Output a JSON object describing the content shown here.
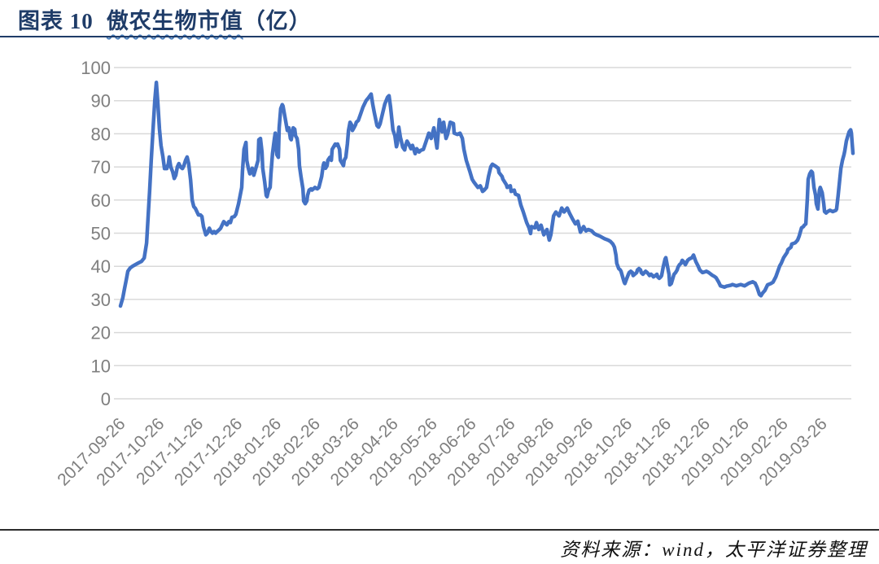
{
  "figure": {
    "label": "图表 10",
    "title_main": "傲农生物市值",
    "title_suffix": "（亿）",
    "source": "资料来源：wind，太平洋证券整理"
  },
  "colors": {
    "line": "#4472C4",
    "gridline": "#D9D9D9",
    "tick_label": "#7F7F7F",
    "title": "#1F3C68",
    "title_rule": "#1F3C68",
    "bottom_rule": "#2B2B2B",
    "wavy_underline": "#4A7EBB"
  },
  "chart_data": {
    "type": "line",
    "title": "傲农生物市值（亿）",
    "series_name": "傲农生物市值",
    "unit": "亿",
    "ylim": [
      0,
      100
    ],
    "yticks": [
      0,
      10,
      20,
      30,
      40,
      50,
      60,
      70,
      80,
      90,
      100
    ],
    "grid": "horizontal",
    "legend": "none",
    "x_unit": "months since 2017-09-26",
    "xtick_labels": [
      "2017-09-26",
      "2017-10-26",
      "2017-11-26",
      "2017-12-26",
      "2018-01-26",
      "2018-02-26",
      "2018-03-26",
      "2018-04-26",
      "2018-05-26",
      "2018-06-26",
      "2018-07-26",
      "2018-08-26",
      "2018-09-26",
      "2018-10-26",
      "2018-11-26",
      "2018-12-26",
      "2019-01-26",
      "2019-02-26",
      "2019-03-26"
    ],
    "points": [
      [
        0,
        28
      ],
      [
        0.06,
        30.5
      ],
      [
        0.1,
        33
      ],
      [
        0.15,
        36
      ],
      [
        0.19,
        38.5
      ],
      [
        0.25,
        39.5
      ],
      [
        0.31,
        40
      ],
      [
        0.38,
        40.5
      ],
      [
        0.46,
        41
      ],
      [
        0.54,
        41.5
      ],
      [
        0.61,
        42.5
      ],
      [
        0.67,
        47
      ],
      [
        0.71,
        55
      ],
      [
        0.75,
        63
      ],
      [
        0.79,
        72
      ],
      [
        0.84,
        82
      ],
      [
        0.88,
        90
      ],
      [
        0.92,
        95.5
      ],
      [
        0.96,
        89
      ],
      [
        1,
        81.5
      ],
      [
        1.04,
        76.5
      ],
      [
        1.09,
        73
      ],
      [
        1.13,
        69.5
      ],
      [
        1.19,
        69.5
      ],
      [
        1.23,
        71
      ],
      [
        1.25,
        73
      ],
      [
        1.29,
        70
      ],
      [
        1.34,
        68.5
      ],
      [
        1.38,
        66.5
      ],
      [
        1.42,
        67.5
      ],
      [
        1.46,
        70
      ],
      [
        1.5,
        71
      ],
      [
        1.54,
        70
      ],
      [
        1.59,
        69.5
      ],
      [
        1.63,
        70.5
      ],
      [
        1.67,
        72
      ],
      [
        1.71,
        73
      ],
      [
        1.75,
        71
      ],
      [
        1.8,
        66
      ],
      [
        1.84,
        60
      ],
      [
        1.88,
        58
      ],
      [
        1.92,
        57.5
      ],
      [
        1.96,
        56.5
      ],
      [
        2,
        55.5
      ],
      [
        2.05,
        55.5
      ],
      [
        2.09,
        55
      ],
      [
        2.13,
        52
      ],
      [
        2.19,
        49.5
      ],
      [
        2.23,
        50
      ],
      [
        2.28,
        51.5
      ],
      [
        2.32,
        50.5
      ],
      [
        2.36,
        50
      ],
      [
        2.4,
        50.5
      ],
      [
        2.44,
        50
      ],
      [
        2.48,
        50.5
      ],
      [
        2.53,
        51
      ],
      [
        2.57,
        51.5
      ],
      [
        2.61,
        52.5
      ],
      [
        2.65,
        53.5
      ],
      [
        2.69,
        53
      ],
      [
        2.73,
        52.5
      ],
      [
        2.78,
        53.5
      ],
      [
        2.82,
        53.2
      ],
      [
        2.86,
        54.8
      ],
      [
        2.92,
        55
      ],
      [
        2.96,
        55.7
      ],
      [
        3.03,
        58.9
      ],
      [
        3.11,
        63.8
      ],
      [
        3.13,
        68.7
      ],
      [
        3.17,
        75.3
      ],
      [
        3.22,
        77.4
      ],
      [
        3.24,
        72
      ],
      [
        3.28,
        69.6
      ],
      [
        3.32,
        67.9
      ],
      [
        3.34,
        68.7
      ],
      [
        3.38,
        69.6
      ],
      [
        3.42,
        67.5
      ],
      [
        3.45,
        68.7
      ],
      [
        3.53,
        72
      ],
      [
        3.55,
        78.2
      ],
      [
        3.59,
        78.6
      ],
      [
        3.63,
        74.5
      ],
      [
        3.65,
        69.6
      ],
      [
        3.7,
        65.5
      ],
      [
        3.74,
        61.4
      ],
      [
        3.76,
        61
      ],
      [
        3.8,
        63
      ],
      [
        3.84,
        63.8
      ],
      [
        3.86,
        67.9
      ],
      [
        3.9,
        74
      ],
      [
        3.95,
        78.6
      ],
      [
        3.97,
        80.2
      ],
      [
        4.01,
        73.7
      ],
      [
        4.05,
        72.9
      ],
      [
        4.07,
        81.8
      ],
      [
        4.11,
        87.6
      ],
      [
        4.15,
        88.8
      ],
      [
        4.17,
        88.4
      ],
      [
        4.22,
        85.1
      ],
      [
        4.26,
        82.3
      ],
      [
        4.28,
        81
      ],
      [
        4.32,
        81.8
      ],
      [
        4.36,
        78.6
      ],
      [
        4.38,
        78.2
      ],
      [
        4.43,
        81.8
      ],
      [
        4.47,
        81.4
      ],
      [
        4.49,
        79.4
      ],
      [
        4.53,
        78.6
      ],
      [
        4.57,
        75.3
      ],
      [
        4.59,
        70.4
      ],
      [
        4.63,
        67.1
      ],
      [
        4.68,
        63.4
      ],
      [
        4.7,
        59.7
      ],
      [
        4.74,
        58.9
      ],
      [
        4.78,
        59.7
      ],
      [
        4.8,
        61.4
      ],
      [
        4.84,
        63
      ],
      [
        4.89,
        63.4
      ],
      [
        4.91,
        63
      ],
      [
        4.95,
        63.4
      ],
      [
        4.99,
        63.8
      ],
      [
        5.05,
        63.4
      ],
      [
        5.09,
        63.8
      ],
      [
        5.16,
        67.1
      ],
      [
        5.2,
        70.4
      ],
      [
        5.22,
        71.2
      ],
      [
        5.26,
        69.6
      ],
      [
        5.3,
        70.4
      ],
      [
        5.32,
        72
      ],
      [
        5.37,
        72.9
      ],
      [
        5.41,
        72
      ],
      [
        5.43,
        75.3
      ],
      [
        5.47,
        76.1
      ],
      [
        5.51,
        76.9
      ],
      [
        5.53,
        76.5
      ],
      [
        5.57,
        76.9
      ],
      [
        5.62,
        75.3
      ],
      [
        5.64,
        72
      ],
      [
        5.68,
        71.2
      ],
      [
        5.72,
        70.4
      ],
      [
        5.74,
        72
      ],
      [
        5.78,
        72.9
      ],
      [
        5.82,
        76.9
      ],
      [
        5.85,
        81
      ],
      [
        5.89,
        83.5
      ],
      [
        5.93,
        82.7
      ],
      [
        5.95,
        81
      ],
      [
        5.99,
        81.8
      ],
      [
        6.03,
        82.7
      ],
      [
        6.05,
        83.5
      ],
      [
        6.1,
        84
      ],
      [
        6.16,
        86
      ],
      [
        6.22,
        88
      ],
      [
        6.3,
        90
      ],
      [
        6.37,
        91
      ],
      [
        6.43,
        92
      ],
      [
        6.47,
        89
      ],
      [
        6.51,
        86.5
      ],
      [
        6.58,
        82.5
      ],
      [
        6.62,
        82
      ],
      [
        6.66,
        83
      ],
      [
        6.72,
        86
      ],
      [
        6.78,
        89
      ],
      [
        6.85,
        91
      ],
      [
        6.89,
        91.5
      ],
      [
        6.93,
        88
      ],
      [
        6.99,
        81.2
      ],
      [
        7.04,
        79.4
      ],
      [
        7.08,
        76.1
      ],
      [
        7.1,
        77
      ],
      [
        7.14,
        82
      ],
      [
        7.18,
        79
      ],
      [
        7.2,
        78
      ],
      [
        7.24,
        76
      ],
      [
        7.29,
        75.1
      ],
      [
        7.31,
        76.3
      ],
      [
        7.35,
        77.8
      ],
      [
        7.39,
        77
      ],
      [
        7.45,
        75.5
      ],
      [
        7.49,
        76.5
      ],
      [
        7.56,
        74
      ],
      [
        7.6,
        75.5
      ],
      [
        7.66,
        74.5
      ],
      [
        7.7,
        75
      ],
      [
        7.77,
        75.3
      ],
      [
        7.83,
        77.4
      ],
      [
        7.91,
        80.2
      ],
      [
        7.97,
        78.6
      ],
      [
        8.04,
        81.8
      ],
      [
        8.12,
        75.7
      ],
      [
        8.18,
        84.3
      ],
      [
        8.25,
        80.6
      ],
      [
        8.29,
        83.5
      ],
      [
        8.35,
        78.6
      ],
      [
        8.39,
        79.8
      ],
      [
        8.46,
        83.5
      ],
      [
        8.54,
        83.1
      ],
      [
        8.56,
        80.2
      ],
      [
        8.64,
        79.8
      ],
      [
        8.71,
        80.2
      ],
      [
        8.77,
        78.6
      ],
      [
        8.81,
        75.3
      ],
      [
        8.87,
        72
      ],
      [
        8.96,
        68.7
      ],
      [
        9.02,
        66.3
      ],
      [
        9.06,
        65.5
      ],
      [
        9.12,
        64.6
      ],
      [
        9.17,
        63.8
      ],
      [
        9.23,
        64.3
      ],
      [
        9.29,
        62.6
      ],
      [
        9.33,
        63
      ],
      [
        9.39,
        63.8
      ],
      [
        9.44,
        67.1
      ],
      [
        9.5,
        70
      ],
      [
        9.54,
        70.8
      ],
      [
        9.6,
        70.4
      ],
      [
        9.69,
        69.6
      ],
      [
        9.71,
        68.3
      ],
      [
        9.79,
        67.1
      ],
      [
        9.81,
        66.3
      ],
      [
        9.9,
        64.6
      ],
      [
        9.92,
        63.8
      ],
      [
        10,
        64.3
      ],
      [
        10.02,
        62.6
      ],
      [
        10.1,
        63
      ],
      [
        10.13,
        61.8
      ],
      [
        10.21,
        61.4
      ],
      [
        10.27,
        58.5
      ],
      [
        10.33,
        56.5
      ],
      [
        10.42,
        53.2
      ],
      [
        10.48,
        51.6
      ],
      [
        10.52,
        49.9
      ],
      [
        10.54,
        52
      ],
      [
        10.63,
        51.6
      ],
      [
        10.67,
        53.2
      ],
      [
        10.73,
        51.1
      ],
      [
        10.79,
        52.4
      ],
      [
        10.86,
        49.5
      ],
      [
        10.94,
        51.1
      ],
      [
        11,
        47.9
      ],
      [
        11.04,
        49.5
      ],
      [
        11.11,
        55.2
      ],
      [
        11.17,
        56.4
      ],
      [
        11.25,
        55.2
      ],
      [
        11.32,
        57.6
      ],
      [
        11.38,
        56.4
      ],
      [
        11.46,
        57.6
      ],
      [
        11.52,
        56
      ],
      [
        11.59,
        54.4
      ],
      [
        11.67,
        52.8
      ],
      [
        11.73,
        53.6
      ],
      [
        11.8,
        50.3
      ],
      [
        11.88,
        52
      ],
      [
        11.94,
        50.7
      ],
      [
        12,
        51.1
      ],
      [
        12.09,
        50.7
      ],
      [
        12.15,
        49.9
      ],
      [
        12.21,
        49.5
      ],
      [
        12.3,
        49.1
      ],
      [
        12.36,
        48.7
      ],
      [
        12.42,
        48.3
      ],
      [
        12.51,
        47.9
      ],
      [
        12.57,
        47.5
      ],
      [
        12.63,
        46.7
      ],
      [
        12.67,
        45.8
      ],
      [
        12.71,
        43.4
      ],
      [
        12.73,
        40.9
      ],
      [
        12.78,
        39.3
      ],
      [
        12.82,
        38.9
      ],
      [
        12.84,
        38.5
      ],
      [
        12.88,
        36.8
      ],
      [
        12.92,
        35.2
      ],
      [
        12.94,
        34.8
      ],
      [
        12.99,
        36.4
      ],
      [
        13.03,
        37.6
      ],
      [
        13.05,
        38.1
      ],
      [
        13.09,
        38.5
      ],
      [
        13.13,
        38.1
      ],
      [
        13.15,
        37.2
      ],
      [
        13.19,
        37.6
      ],
      [
        13.24,
        38.1
      ],
      [
        13.26,
        38.9
      ],
      [
        13.3,
        39.3
      ],
      [
        13.34,
        38.9
      ],
      [
        13.36,
        38.1
      ],
      [
        13.4,
        37.6
      ],
      [
        13.44,
        38.1
      ],
      [
        13.47,
        38.5
      ],
      [
        13.51,
        38.1
      ],
      [
        13.55,
        37.6
      ],
      [
        13.57,
        37.2
      ],
      [
        13.61,
        37.6
      ],
      [
        13.65,
        37.2
      ],
      [
        13.67,
        36.8
      ],
      [
        13.72,
        37.2
      ],
      [
        13.76,
        37.6
      ],
      [
        13.78,
        36.8
      ],
      [
        13.82,
        36.4
      ],
      [
        13.86,
        36.8
      ],
      [
        13.88,
        37.2
      ],
      [
        13.92,
        39.7
      ],
      [
        13.97,
        42.2
      ],
      [
        13.99,
        42.6
      ],
      [
        14.03,
        40.1
      ],
      [
        14.07,
        37.6
      ],
      [
        14.09,
        34.4
      ],
      [
        14.13,
        34.8
      ],
      [
        14.18,
        36.8
      ],
      [
        14.2,
        37.6
      ],
      [
        14.24,
        38.1
      ],
      [
        14.28,
        38.9
      ],
      [
        14.3,
        39.7
      ],
      [
        14.34,
        40.5
      ],
      [
        14.38,
        40.9
      ],
      [
        14.41,
        41.8
      ],
      [
        14.45,
        41.3
      ],
      [
        14.49,
        40.5
      ],
      [
        14.51,
        40.9
      ],
      [
        14.55,
        41.8
      ],
      [
        14.59,
        42.2
      ],
      [
        14.66,
        42.6
      ],
      [
        14.7,
        43.4
      ],
      [
        14.76,
        41.4
      ],
      [
        14.82,
        40
      ],
      [
        14.86,
        38.9
      ],
      [
        14.93,
        38.1
      ],
      [
        14.99,
        38.3
      ],
      [
        15.03,
        38.5
      ],
      [
        15.09,
        38.1
      ],
      [
        15.18,
        37.3
      ],
      [
        15.24,
        36.9
      ],
      [
        15.28,
        36.5
      ],
      [
        15.34,
        35.3
      ],
      [
        15.39,
        34.1
      ],
      [
        15.49,
        33.7
      ],
      [
        15.55,
        34
      ],
      [
        15.59,
        34.1
      ],
      [
        15.66,
        34.3
      ],
      [
        15.7,
        34.5
      ],
      [
        15.8,
        34.1
      ],
      [
        15.91,
        34.5
      ],
      [
        16.01,
        34.1
      ],
      [
        16.12,
        34.9
      ],
      [
        16.22,
        35.3
      ],
      [
        16.28,
        34.9
      ],
      [
        16.33,
        33.6
      ],
      [
        16.39,
        31.5
      ],
      [
        16.43,
        31.1
      ],
      [
        16.47,
        31.9
      ],
      [
        16.53,
        32.7
      ],
      [
        16.6,
        34.4
      ],
      [
        16.68,
        34.8
      ],
      [
        16.74,
        35.2
      ],
      [
        16.81,
        36.8
      ],
      [
        16.85,
        38.1
      ],
      [
        16.91,
        40.1
      ],
      [
        16.95,
        40.9
      ],
      [
        17.01,
        42.6
      ],
      [
        17.1,
        44.2
      ],
      [
        17.12,
        45
      ],
      [
        17.2,
        45.8
      ],
      [
        17.22,
        46.7
      ],
      [
        17.31,
        47.1
      ],
      [
        17.37,
        47.9
      ],
      [
        17.41,
        49.1
      ],
      [
        17.47,
        51.6
      ],
      [
        17.52,
        52
      ],
      [
        17.54,
        52.4
      ],
      [
        17.58,
        52.8
      ],
      [
        17.62,
        60.6
      ],
      [
        17.64,
        66.3
      ],
      [
        17.68,
        67.9
      ],
      [
        17.72,
        68.7
      ],
      [
        17.75,
        68.3
      ],
      [
        17.79,
        63.8
      ],
      [
        17.83,
        61.4
      ],
      [
        17.85,
        58.9
      ],
      [
        17.89,
        57.3
      ],
      [
        17.93,
        63
      ],
      [
        17.95,
        63.8
      ],
      [
        18,
        62.2
      ],
      [
        18.04,
        58.9
      ],
      [
        18.06,
        56.5
      ],
      [
        18.1,
        56.1
      ],
      [
        18.14,
        56.5
      ],
      [
        18.2,
        56.9
      ],
      [
        18.27,
        56.5
      ],
      [
        18.35,
        56.9
      ],
      [
        18.37,
        57.3
      ],
      [
        18.41,
        61.4
      ],
      [
        18.45,
        66.3
      ],
      [
        18.48,
        69.6
      ],
      [
        18.52,
        72
      ],
      [
        18.56,
        73.7
      ],
      [
        18.58,
        74.9
      ],
      [
        18.62,
        77.8
      ],
      [
        18.66,
        79.4
      ],
      [
        18.69,
        80.6
      ],
      [
        18.73,
        81.2
      ],
      [
        18.75,
        80.2
      ],
      [
        18.77,
        76.9
      ],
      [
        18.79,
        74.1
      ]
    ]
  }
}
